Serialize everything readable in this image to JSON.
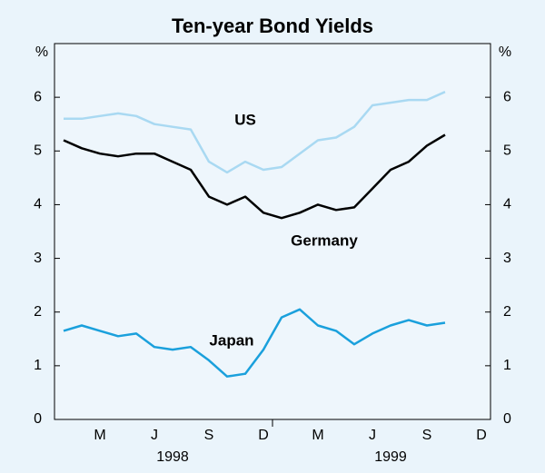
{
  "chart_data": {
    "type": "line",
    "title": "Ten-year Bond Yields",
    "y_unit": "%",
    "categories": [
      null,
      null,
      "M",
      null,
      null,
      "J",
      null,
      null,
      "S",
      null,
      null,
      "D",
      null,
      null,
      "M",
      null,
      null,
      "J",
      null,
      null,
      "S",
      null,
      null,
      "D"
    ],
    "years": [
      "1998",
      "1999"
    ],
    "series": [
      {
        "name": "US",
        "color": "#a9d9f2",
        "values": [
          5.6,
          5.6,
          5.65,
          5.7,
          5.65,
          5.5,
          5.45,
          5.4,
          4.8,
          4.6,
          4.8,
          4.65,
          4.7,
          4.95,
          5.2,
          5.25,
          5.45,
          5.85,
          5.9,
          5.95,
          5.95,
          6.1,
          null,
          null
        ]
      },
      {
        "name": "Germany",
        "color": "#000000",
        "values": [
          5.2,
          5.05,
          4.95,
          4.9,
          4.95,
          4.95,
          4.8,
          4.65,
          4.15,
          4.0,
          4.15,
          3.85,
          3.75,
          3.85,
          4.0,
          3.9,
          3.95,
          4.3,
          4.65,
          4.8,
          5.1,
          5.3,
          null,
          null
        ]
      },
      {
        "name": "Japan",
        "color": "#1aa0dc",
        "values": [
          1.65,
          1.75,
          1.65,
          1.55,
          1.6,
          1.35,
          1.3,
          1.35,
          1.1,
          0.8,
          0.85,
          1.3,
          1.9,
          2.05,
          1.75,
          1.65,
          1.4,
          1.6,
          1.75,
          1.85,
          1.75,
          1.8,
          null,
          null
        ]
      }
    ],
    "ylim": [
      0,
      7
    ],
    "yticks": [
      0,
      1,
      2,
      3,
      4,
      5,
      6
    ],
    "grid": false
  }
}
